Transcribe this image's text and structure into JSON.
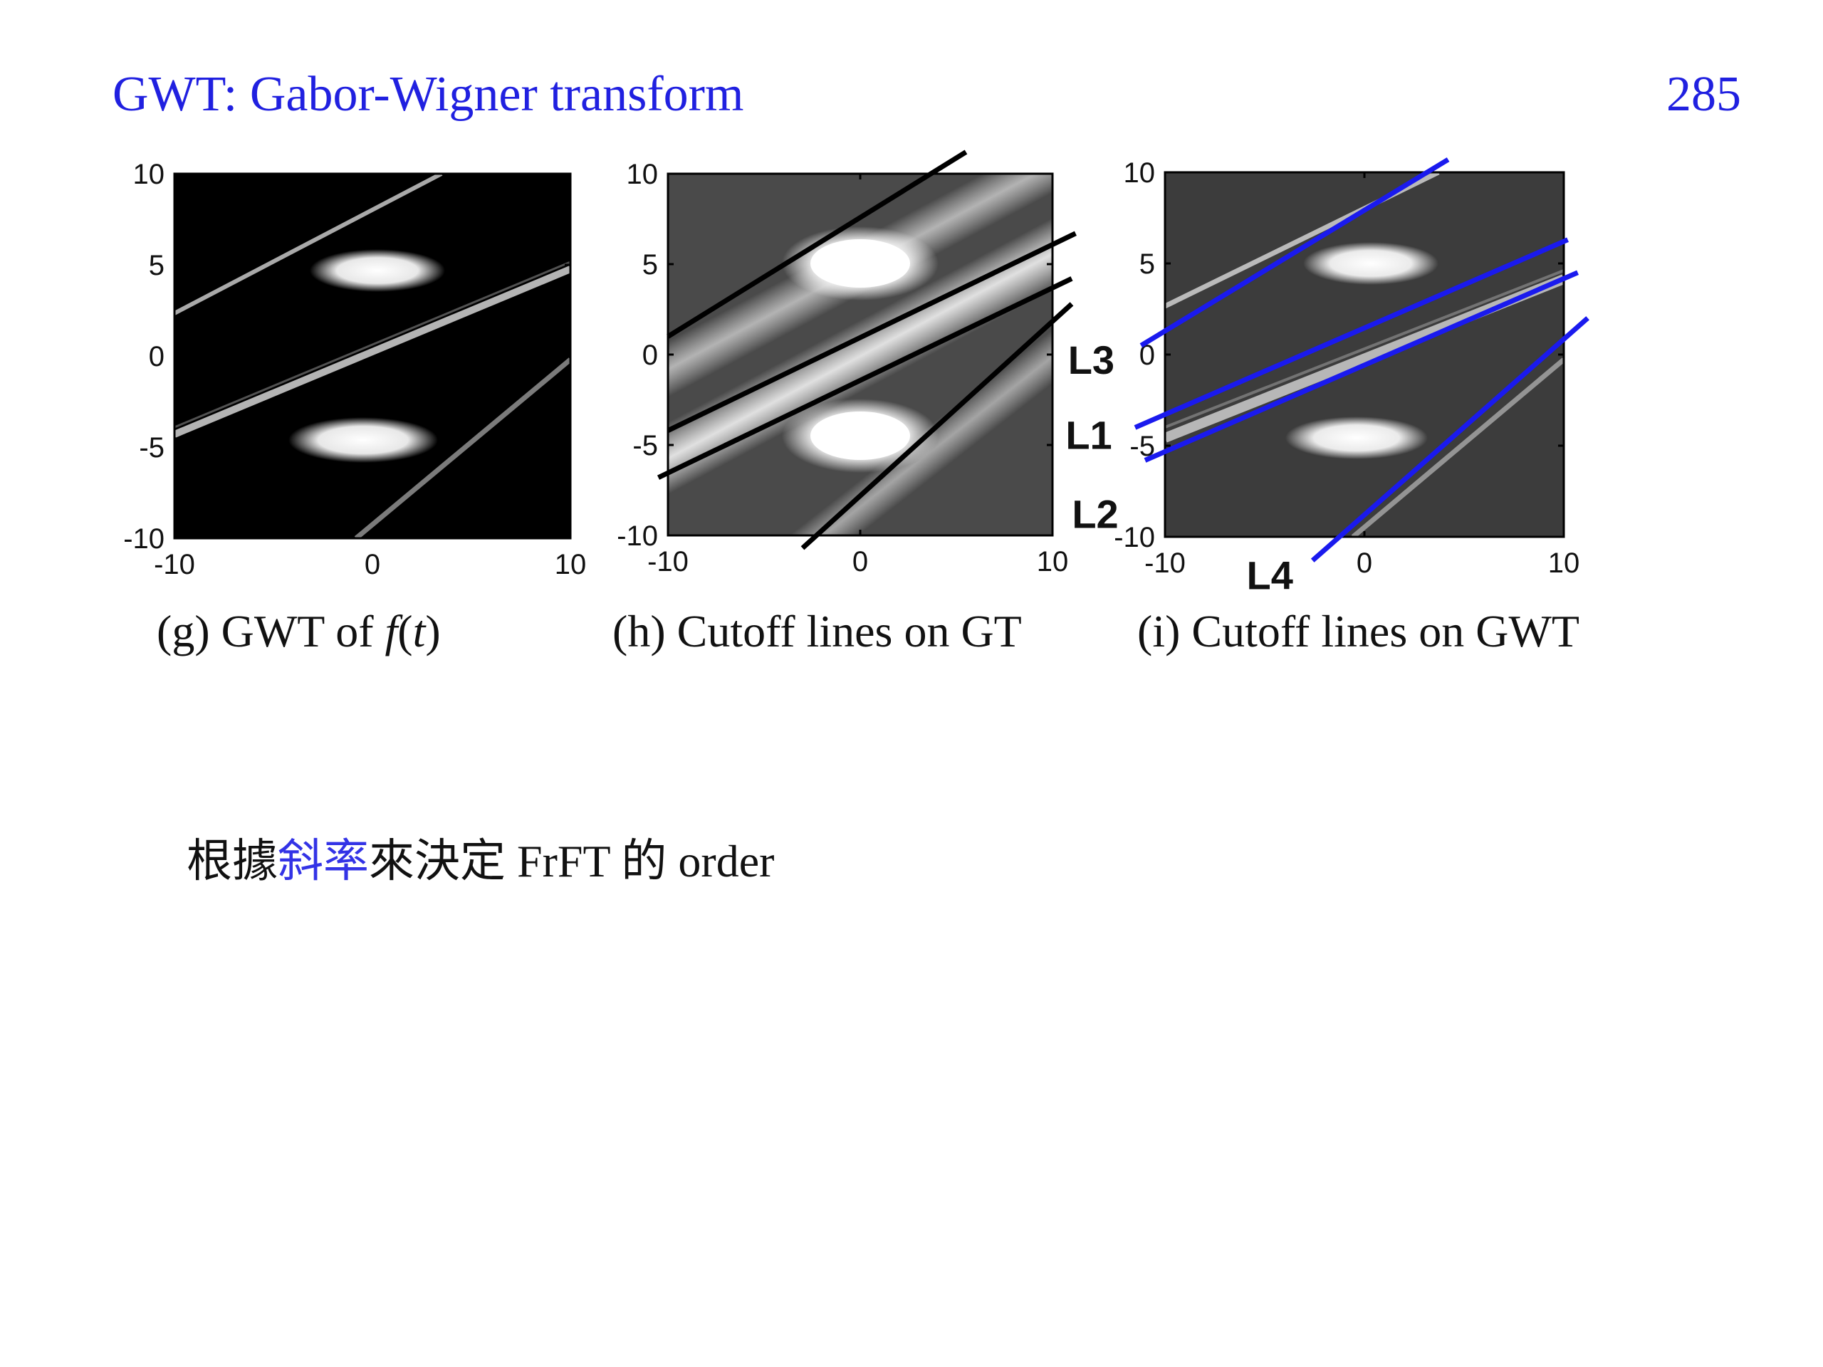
{
  "slide": {
    "title": "GWT: Gabor-Wigner transform",
    "page_number": "285"
  },
  "figures": [
    {
      "id": "g",
      "caption_prefix": "(g) GWT of ",
      "caption_func": "f",
      "caption_open": "(",
      "caption_var": "t",
      "caption_close": ")",
      "x_ticks": [
        "-10",
        "0",
        "10"
      ],
      "y_ticks": [
        "10",
        "5",
        "0",
        "-5",
        "-10"
      ],
      "xlim": [
        -10,
        10
      ],
      "ylim": [
        -10,
        10
      ],
      "background": "#000000",
      "line_color": "#000000",
      "lines": []
    },
    {
      "id": "h",
      "caption": "(h) Cutoff lines on GT",
      "x_ticks": [
        "-10",
        "0",
        "10"
      ],
      "y_ticks": [
        "10",
        "5",
        "0",
        "-5",
        "-10"
      ],
      "xlim": [
        -10,
        10
      ],
      "ylim": [
        -10,
        10
      ],
      "background": "#4a4a4a",
      "line_color": "#000000",
      "lines": [
        {
          "label": "",
          "x": [
            -10,
            5.5
          ],
          "y": [
            1,
            11.2
          ]
        },
        {
          "label": "",
          "x": [
            -10,
            11.2
          ],
          "y": [
            -4.2,
            6.7
          ]
        },
        {
          "label": "",
          "x": [
            -10.5,
            11
          ],
          "y": [
            -6.8,
            4.2
          ]
        },
        {
          "label": "",
          "x": [
            -3,
            11
          ],
          "y": [
            -10.7,
            2.8
          ]
        }
      ]
    },
    {
      "id": "i",
      "caption": "(i) Cutoff lines on GWT",
      "x_ticks": [
        "-10",
        "0",
        "10"
      ],
      "y_ticks": [
        "10",
        "5",
        "0",
        "-5",
        "-10"
      ],
      "xlim": [
        -10,
        10
      ],
      "ylim": [
        -10,
        10
      ],
      "background": "#3c3c3c",
      "line_color": "#1a1aee",
      "lines": [
        {
          "label": "L3",
          "x": [
            -11.2,
            4.2
          ],
          "y": [
            0.5,
            10.7
          ]
        },
        {
          "label": "L1",
          "x": [
            -11.5,
            10.2
          ],
          "y": [
            -4,
            6.3
          ]
        },
        {
          "label": "L2",
          "x": [
            -11,
            10.7
          ],
          "y": [
            -5.8,
            4.5
          ]
        },
        {
          "label": "L4",
          "x": [
            -2.6,
            11.2
          ],
          "y": [
            -11.3,
            2
          ]
        }
      ]
    }
  ],
  "body": {
    "text_before": "根據",
    "highlight": "斜率",
    "text_after": "來決定 FrFT 的 order"
  }
}
